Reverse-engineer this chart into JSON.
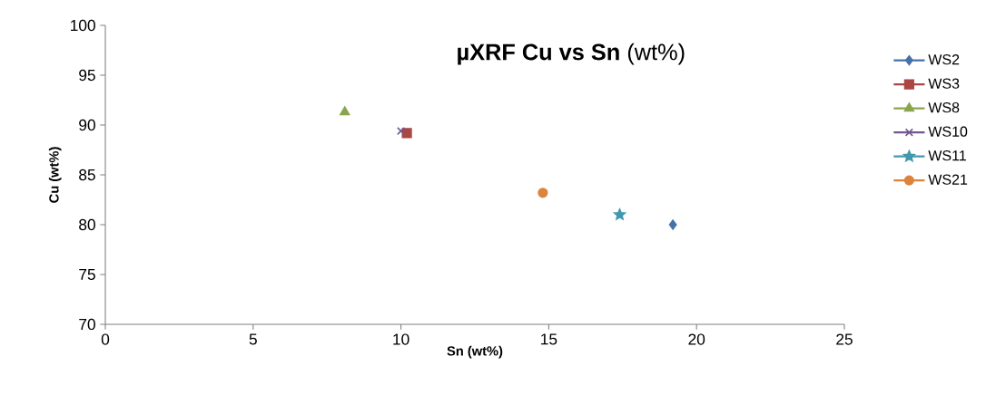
{
  "chart_data": {
    "type": "scatter",
    "title": "**µXRF Cu vs Sn** (wt%)",
    "xlabel": "Sn (wt%)",
    "ylabel": "Cu (wt%)",
    "xlim": [
      0,
      25
    ],
    "xticks": [
      0,
      5,
      10,
      15,
      20,
      25
    ],
    "ylim": [
      70,
      100
    ],
    "yticks": [
      70,
      75,
      80,
      85,
      90,
      95,
      100
    ],
    "grid": false,
    "legend": "right",
    "series": [
      {
        "name": "WS2",
        "color": "#4572a7",
        "marker": "diamond",
        "x": [
          19.2
        ],
        "values": [
          80.0
        ]
      },
      {
        "name": "WS3",
        "color": "#aa4643",
        "marker": "square",
        "x": [
          10.2
        ],
        "values": [
          89.2
        ]
      },
      {
        "name": "WS8",
        "color": "#89a54e",
        "marker": "triangle",
        "x": [
          8.1
        ],
        "values": [
          91.3
        ]
      },
      {
        "name": "WS10",
        "color": "#71588f",
        "marker": "cross",
        "x": [
          10.0
        ],
        "values": [
          89.4
        ]
      },
      {
        "name": "WS11",
        "color": "#4198af",
        "marker": "star",
        "x": [
          17.4
        ],
        "values": [
          81.0
        ]
      },
      {
        "name": "WS21",
        "color": "#db843d",
        "marker": "circle",
        "x": [
          14.8
        ],
        "values": [
          83.2
        ]
      }
    ]
  }
}
